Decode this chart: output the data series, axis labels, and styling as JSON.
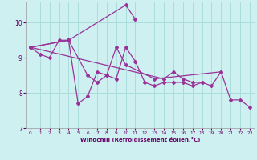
{
  "xlabel": "Windchill (Refroidissement éolien,°C)",
  "xlim": [
    -0.5,
    23.5
  ],
  "ylim": [
    7,
    10.6
  ],
  "yticks": [
    7,
    8,
    9,
    10
  ],
  "xticks": [
    0,
    1,
    2,
    3,
    4,
    5,
    6,
    7,
    8,
    9,
    10,
    11,
    12,
    13,
    14,
    15,
    16,
    17,
    18,
    19,
    20,
    21,
    22,
    23
  ],
  "bg_color": "#cff0f0",
  "grid_color": "#aadddd",
  "line_color": "#993399",
  "series": [
    {
      "x": [
        0,
        1,
        2,
        3,
        4,
        5,
        6,
        7,
        8,
        9,
        10,
        11,
        12,
        13,
        14,
        15,
        16,
        17,
        18,
        19,
        20,
        21,
        22,
        23
      ],
      "y": [
        9.3,
        9.1,
        9.0,
        9.5,
        9.5,
        7.7,
        7.9,
        8.6,
        8.5,
        8.4,
        9.3,
        8.9,
        8.3,
        8.2,
        8.3,
        8.3,
        8.3,
        8.2,
        8.3,
        8.2,
        8.6,
        7.8,
        7.8,
        7.6
      ]
    },
    {
      "x": [
        0,
        4,
        10,
        11
      ],
      "y": [
        9.3,
        9.5,
        10.5,
        10.1
      ]
    },
    {
      "x": [
        0,
        4,
        6,
        7,
        8,
        9,
        10,
        13,
        20
      ],
      "y": [
        9.3,
        9.5,
        8.5,
        8.3,
        8.5,
        9.3,
        8.8,
        8.4,
        8.6
      ]
    },
    {
      "x": [
        0,
        14,
        15,
        16,
        17,
        18
      ],
      "y": [
        9.3,
        8.4,
        8.6,
        8.4,
        8.3,
        8.3
      ]
    }
  ],
  "xlabel_color": "#660066",
  "tick_color": "#660066",
  "spine_color": "#999999"
}
